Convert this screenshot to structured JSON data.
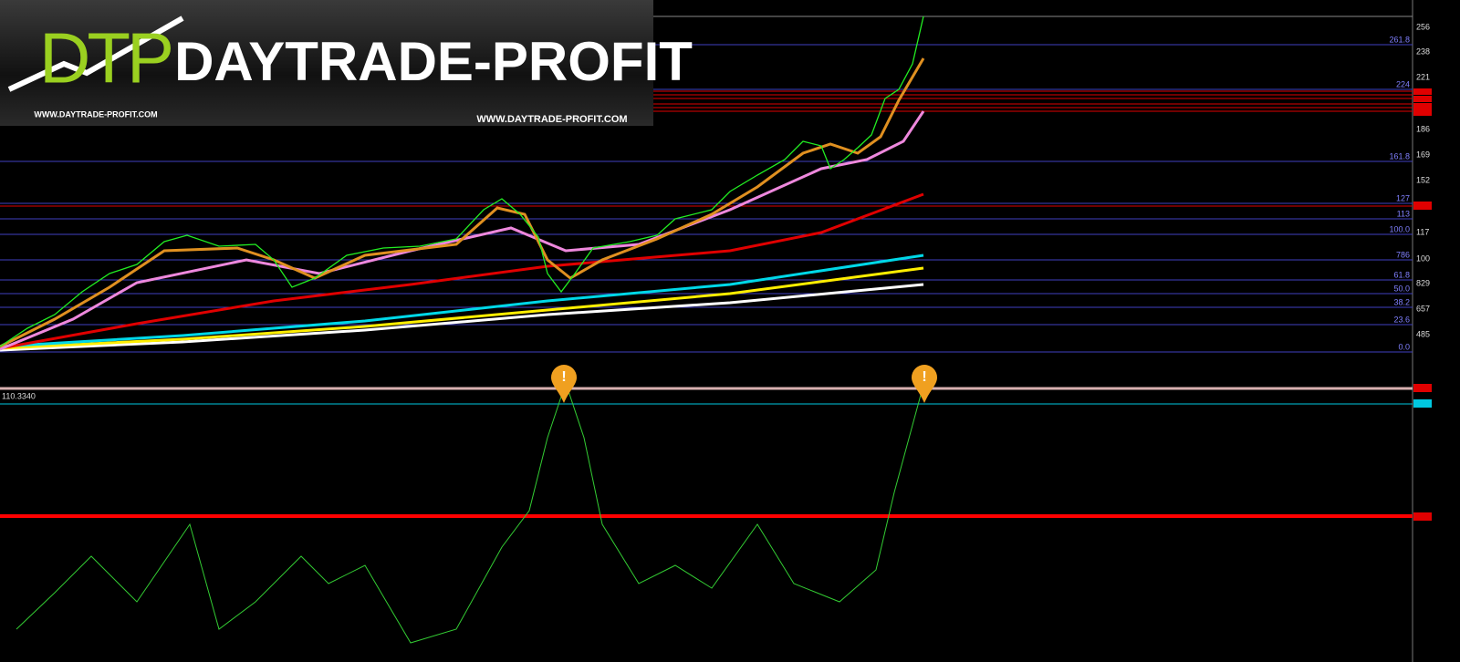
{
  "logo": {
    "mark": "DTP",
    "title": "DAYTRADE-PROFIT",
    "url_left": "WWW.DAYTRADE-PROFIT.COM",
    "url_right": "WWW.DAYTRADE-PROFIT.COM"
  },
  "fib_labels": [
    "261.8",
    "224",
    "161.8",
    "127",
    "113",
    "100.0",
    "786",
    "61.8",
    "50.0",
    "38.2",
    "23.6",
    "0.0"
  ],
  "price_axis_labels": [
    "256",
    "238",
    "221",
    "186",
    "169",
    "152",
    "117",
    "100",
    "829",
    "657",
    "485"
  ],
  "indicator_value": "110.3340"
}
